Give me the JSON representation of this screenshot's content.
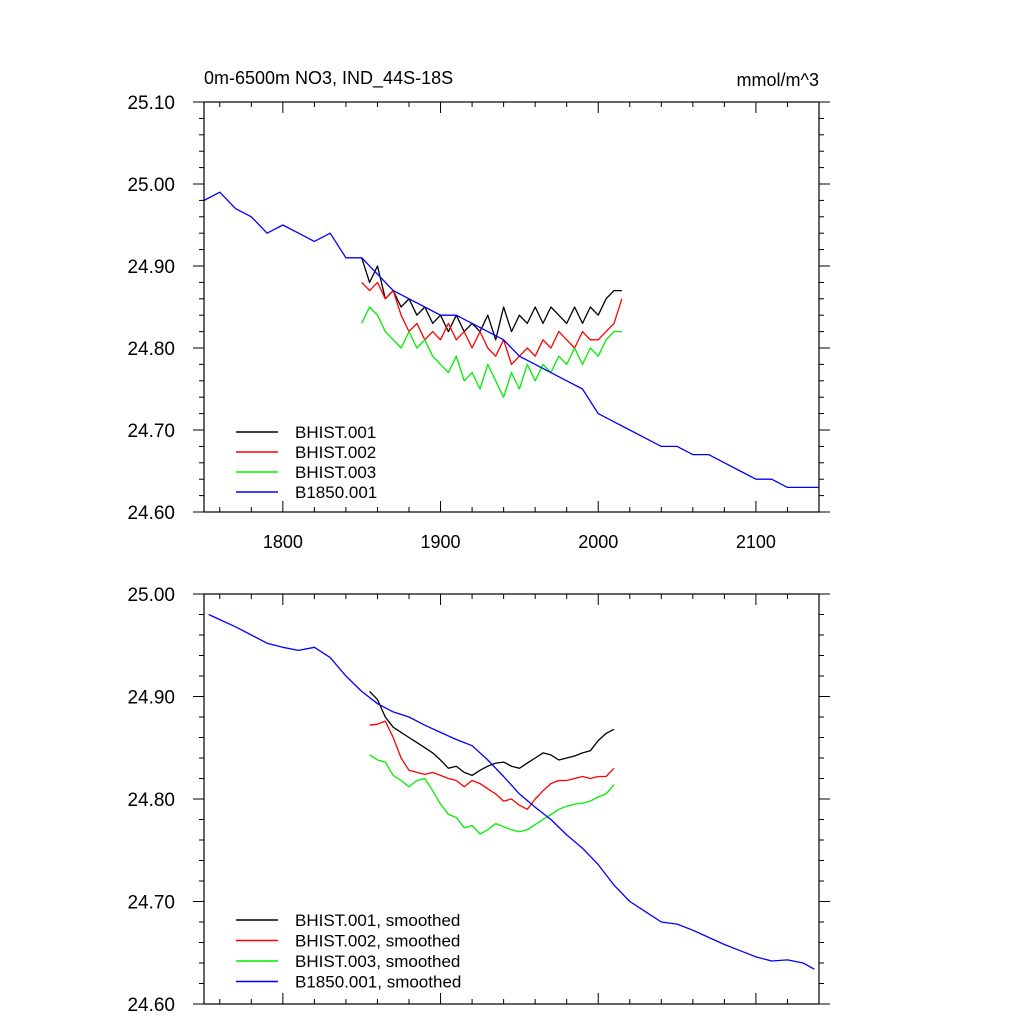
{
  "chart_data": [
    {
      "type": "line",
      "title": "0m-6500m NO3, IND_44S-18S",
      "units": "mmol/m^3",
      "xlim": [
        1750,
        2140
      ],
      "ylim": [
        24.6,
        25.1
      ],
      "x_ticks": [
        1800,
        1900,
        2000,
        2100
      ],
      "x_tick_labels": [
        "1800",
        "1900",
        "2000",
        "2100"
      ],
      "y_ticks": [
        24.6,
        24.7,
        24.8,
        24.9,
        25.0,
        25.1
      ],
      "y_tick_labels": [
        "24.60",
        "24.70",
        "24.80",
        "24.90",
        "25.00",
        "25.10"
      ],
      "grid": false,
      "legend_position": "bottom-left",
      "series": [
        {
          "name": "BHIST.001",
          "color": "#000000",
          "x": [
            1850,
            1855,
            1860,
            1865,
            1870,
            1875,
            1880,
            1885,
            1890,
            1895,
            1900,
            1905,
            1910,
            1915,
            1920,
            1925,
            1930,
            1935,
            1940,
            1945,
            1950,
            1955,
            1960,
            1965,
            1970,
            1975,
            1980,
            1985,
            1990,
            1995,
            2000,
            2005,
            2010,
            2015
          ],
          "y": [
            24.91,
            24.88,
            24.9,
            24.86,
            24.87,
            24.85,
            24.86,
            24.84,
            24.85,
            24.83,
            24.84,
            24.82,
            24.84,
            24.82,
            24.83,
            24.82,
            24.84,
            24.81,
            24.85,
            24.82,
            24.84,
            24.83,
            24.85,
            24.83,
            24.85,
            24.84,
            24.83,
            24.85,
            24.83,
            24.85,
            24.84,
            24.86,
            24.87,
            24.87
          ]
        },
        {
          "name": "BHIST.002",
          "color": "#ff0000",
          "x": [
            1850,
            1855,
            1860,
            1865,
            1870,
            1875,
            1880,
            1885,
            1890,
            1895,
            1900,
            1905,
            1910,
            1915,
            1920,
            1925,
            1930,
            1935,
            1940,
            1945,
            1950,
            1955,
            1960,
            1965,
            1970,
            1975,
            1980,
            1985,
            1990,
            1995,
            2000,
            2005,
            2010,
            2015
          ],
          "y": [
            24.88,
            24.87,
            24.88,
            24.86,
            24.87,
            24.84,
            24.82,
            24.83,
            24.81,
            24.82,
            24.81,
            24.83,
            24.81,
            24.82,
            24.8,
            24.82,
            24.8,
            24.79,
            24.81,
            24.78,
            24.79,
            24.8,
            24.79,
            24.81,
            24.8,
            24.82,
            24.81,
            24.8,
            24.82,
            24.81,
            24.81,
            24.82,
            24.83,
            24.86
          ]
        },
        {
          "name": "BHIST.003",
          "color": "#00ee00",
          "x": [
            1850,
            1855,
            1860,
            1865,
            1870,
            1875,
            1880,
            1885,
            1890,
            1895,
            1900,
            1905,
            1910,
            1915,
            1920,
            1925,
            1930,
            1935,
            1940,
            1945,
            1950,
            1955,
            1960,
            1965,
            1970,
            1975,
            1980,
            1985,
            1990,
            1995,
            2000,
            2005,
            2010,
            2015
          ],
          "y": [
            24.83,
            24.85,
            24.84,
            24.82,
            24.81,
            24.8,
            24.82,
            24.8,
            24.81,
            24.79,
            24.78,
            24.77,
            24.79,
            24.76,
            24.77,
            24.75,
            24.78,
            24.76,
            24.74,
            24.77,
            24.75,
            24.78,
            24.76,
            24.78,
            24.77,
            24.79,
            24.78,
            24.8,
            24.78,
            24.8,
            24.79,
            24.81,
            24.82,
            24.82
          ]
        },
        {
          "name": "B1850.001",
          "color": "#0000ff",
          "x": [
            1750,
            1760,
            1770,
            1780,
            1790,
            1800,
            1810,
            1820,
            1830,
            1840,
            1850,
            1860,
            1870,
            1880,
            1890,
            1900,
            1910,
            1920,
            1930,
            1940,
            1950,
            1960,
            1970,
            1980,
            1990,
            2000,
            2010,
            2020,
            2030,
            2040,
            2050,
            2060,
            2070,
            2080,
            2090,
            2100,
            2110,
            2120,
            2130,
            2140
          ],
          "y": [
            24.98,
            24.99,
            24.97,
            24.96,
            24.94,
            24.95,
            24.94,
            24.93,
            24.94,
            24.91,
            24.91,
            24.89,
            24.87,
            24.86,
            24.85,
            24.84,
            24.84,
            24.83,
            24.82,
            24.81,
            24.79,
            24.78,
            24.77,
            24.76,
            24.75,
            24.72,
            24.71,
            24.7,
            24.69,
            24.68,
            24.68,
            24.67,
            24.67,
            24.66,
            24.65,
            24.64,
            24.64,
            24.63,
            24.63,
            24.63
          ]
        }
      ]
    },
    {
      "type": "line",
      "xlim": [
        1750,
        2140
      ],
      "ylim": [
        24.6,
        25.0
      ],
      "x_ticks": [
        1800,
        1900,
        2000,
        2100
      ],
      "y_ticks": [
        24.6,
        24.7,
        24.8,
        24.9,
        25.0
      ],
      "y_tick_labels": [
        "24.60",
        "24.70",
        "24.80",
        "24.90",
        "25.00"
      ],
      "grid": false,
      "legend_position": "bottom-left",
      "series": [
        {
          "name": "BHIST.001, smoothed",
          "color": "#000000",
          "x": [
            1855,
            1860,
            1865,
            1870,
            1875,
            1880,
            1885,
            1890,
            1895,
            1900,
            1905,
            1910,
            1915,
            1920,
            1925,
            1930,
            1935,
            1940,
            1945,
            1950,
            1955,
            1960,
            1965,
            1970,
            1975,
            1980,
            1985,
            1990,
            1995,
            2000,
            2005,
            2010
          ],
          "y": [
            24.905,
            24.897,
            24.88,
            24.87,
            24.865,
            24.86,
            24.855,
            24.85,
            24.845,
            24.838,
            24.83,
            24.832,
            24.826,
            24.823,
            24.828,
            24.832,
            24.835,
            24.836,
            24.832,
            24.83,
            24.835,
            24.84,
            24.845,
            24.843,
            24.838,
            24.84,
            24.842,
            24.845,
            24.847,
            24.857,
            24.864,
            24.868
          ]
        },
        {
          "name": "BHIST.002, smoothed",
          "color": "#ff0000",
          "x": [
            1855,
            1860,
            1865,
            1870,
            1875,
            1880,
            1885,
            1890,
            1895,
            1900,
            1905,
            1910,
            1915,
            1920,
            1925,
            1930,
            1935,
            1940,
            1945,
            1950,
            1955,
            1960,
            1965,
            1970,
            1975,
            1980,
            1985,
            1990,
            1995,
            2000,
            2005,
            2010
          ],
          "y": [
            24.872,
            24.873,
            24.876,
            24.86,
            24.84,
            24.828,
            24.826,
            24.824,
            24.826,
            24.823,
            24.82,
            24.818,
            24.812,
            24.818,
            24.815,
            24.81,
            24.805,
            24.798,
            24.8,
            24.794,
            24.79,
            24.8,
            24.808,
            24.815,
            24.818,
            24.818,
            24.82,
            24.822,
            24.82,
            24.822,
            24.822,
            24.83
          ]
        },
        {
          "name": "BHIST.003, smoothed",
          "color": "#00ee00",
          "x": [
            1855,
            1860,
            1865,
            1870,
            1875,
            1880,
            1885,
            1890,
            1895,
            1900,
            1905,
            1910,
            1915,
            1920,
            1925,
            1930,
            1935,
            1940,
            1945,
            1950,
            1955,
            1960,
            1965,
            1970,
            1975,
            1980,
            1985,
            1990,
            1995,
            2000,
            2005,
            2010
          ],
          "y": [
            24.843,
            24.838,
            24.836,
            24.823,
            24.818,
            24.812,
            24.818,
            24.82,
            24.808,
            24.795,
            24.785,
            24.782,
            24.772,
            24.774,
            24.766,
            24.77,
            24.776,
            24.773,
            24.77,
            24.768,
            24.77,
            24.775,
            24.78,
            24.785,
            24.79,
            24.793,
            24.795,
            24.796,
            24.798,
            24.802,
            24.805,
            24.814
          ]
        },
        {
          "name": "B1850.001, smoothed",
          "color": "#0000ff",
          "x": [
            1753,
            1760,
            1770,
            1780,
            1790,
            1800,
            1810,
            1820,
            1830,
            1840,
            1850,
            1860,
            1870,
            1880,
            1890,
            1900,
            1910,
            1920,
            1930,
            1940,
            1950,
            1960,
            1970,
            1980,
            1990,
            2000,
            2010,
            2020,
            2030,
            2040,
            2050,
            2060,
            2070,
            2080,
            2090,
            2100,
            2110,
            2120,
            2130,
            2137
          ],
          "y": [
            24.98,
            24.975,
            24.968,
            24.96,
            24.952,
            24.948,
            24.945,
            24.948,
            24.938,
            24.92,
            24.905,
            24.893,
            24.885,
            24.88,
            24.872,
            24.865,
            24.858,
            24.852,
            24.838,
            24.822,
            24.805,
            24.792,
            24.78,
            24.765,
            24.752,
            24.736,
            24.716,
            24.7,
            24.69,
            24.68,
            24.678,
            24.672,
            24.665,
            24.658,
            24.652,
            24.646,
            24.642,
            24.643,
            24.64,
            24.634
          ]
        }
      ]
    }
  ]
}
